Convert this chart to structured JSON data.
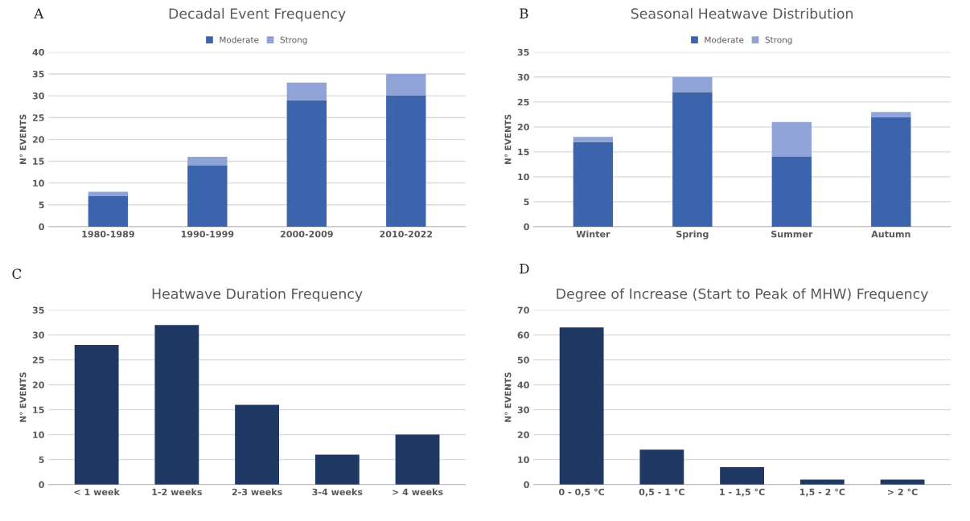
{
  "chart_data": [
    {
      "type": "bar",
      "title": "Decadal Event Frequency",
      "ylabel": "N° EVENTS",
      "annotations": [
        "A"
      ],
      "categories": [
        "1980-1989",
        "1990-1999",
        "2000-2009",
        "2010-2022"
      ],
      "stacked": true,
      "legend": "top",
      "grid": "y",
      "ylim": [
        0,
        40
      ],
      "yticks": [
        0,
        5,
        10,
        15,
        20,
        25,
        30,
        35,
        40
      ],
      "series": [
        {
          "name": "Moderate",
          "color": "#3c64ad",
          "values": [
            7,
            14,
            29,
            30
          ]
        },
        {
          "name": "Strong",
          "color": "#8fa3d6",
          "values": [
            1,
            2,
            4,
            5
          ]
        }
      ]
    },
    {
      "type": "bar",
      "title": "Seasonal Heatwave Distribution",
      "ylabel": "N° EVENTS",
      "annotations": [
        "B"
      ],
      "categories": [
        "Winter",
        "Spring",
        "Summer",
        "Autumn"
      ],
      "stacked": true,
      "legend": "top",
      "grid": "y",
      "ylim": [
        0,
        35
      ],
      "yticks": [
        0,
        5,
        10,
        15,
        20,
        25,
        30,
        35
      ],
      "series": [
        {
          "name": "Moderate",
          "color": "#3c64ad",
          "values": [
            17,
            27,
            14,
            22
          ]
        },
        {
          "name": "Strong",
          "color": "#8fa3d6",
          "values": [
            1,
            3,
            7,
            1
          ]
        }
      ]
    },
    {
      "type": "bar",
      "title": "Heatwave Duration Frequency",
      "ylabel": "N° EVENTS",
      "annotations": [
        "C"
      ],
      "categories": [
        "< 1 week",
        "1-2 weeks",
        "2-3 weeks",
        "3-4 weeks",
        "> 4 weeks"
      ],
      "grid": "y",
      "ylim": [
        0,
        35
      ],
      "yticks": [
        0,
        5,
        10,
        15,
        20,
        25,
        30,
        35
      ],
      "series": [
        {
          "color": "#203864",
          "values": [
            28,
            32,
            16,
            6,
            10
          ]
        }
      ]
    },
    {
      "type": "bar",
      "title": "Degree of Increase (Start to Peak of MHW) Frequency",
      "ylabel": "N° EVENTS",
      "annotations": [
        "D"
      ],
      "categories": [
        "0 - 0,5 °C",
        "0,5 - 1 °C",
        "1 - 1,5 °C",
        "1,5 - 2 °C",
        "> 2 °C"
      ],
      "grid": "y",
      "ylim": [
        0,
        70
      ],
      "yticks": [
        0,
        10,
        20,
        30,
        40,
        50,
        60,
        70
      ],
      "series": [
        {
          "color": "#203864",
          "values": [
            63,
            14,
            7,
            2,
            2
          ]
        }
      ]
    }
  ]
}
